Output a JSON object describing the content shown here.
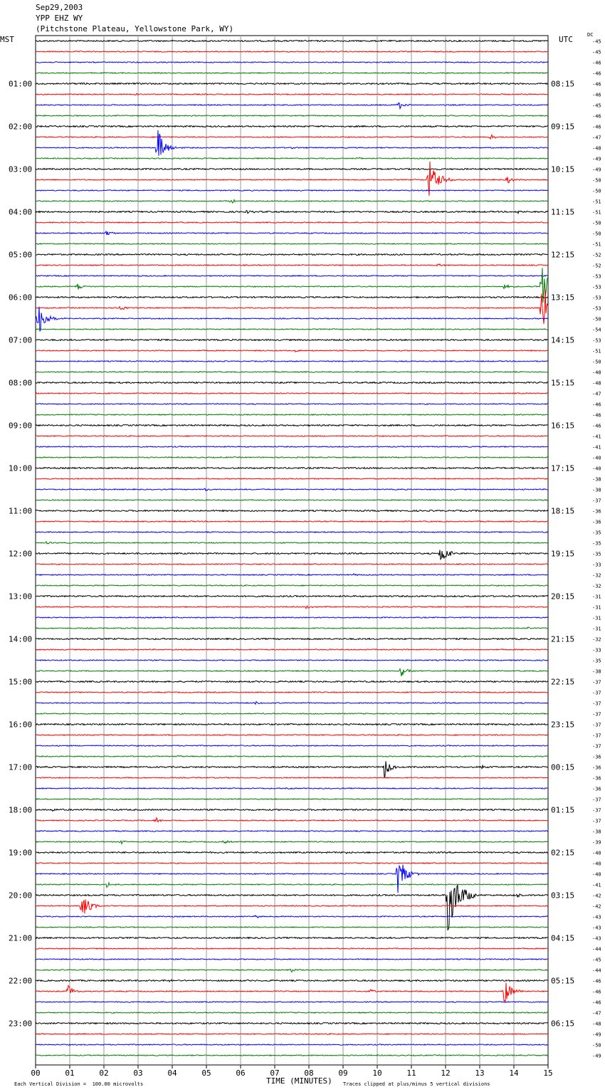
{
  "header": {
    "date": "Sep29,2003",
    "station": "YPP EHZ WY",
    "location": "(Pitchstone Plateau, Yellowstone Park, WY)",
    "left_tz": "MST",
    "right_tz": "UTC",
    "dc_label": "DC"
  },
  "footer": {
    "vertical_division": "Each Vertical Division =  100.00 microvolts",
    "clip_note": "Traces clipped at plus/minus 5 vertical divisions"
  },
  "chart_data": {
    "type": "line",
    "title": "",
    "xlabel": "TIME (MINUTES)",
    "ylabel": "",
    "xlim": [
      0,
      15
    ],
    "x_ticks": [
      "00",
      "01",
      "02",
      "03",
      "04",
      "05",
      "06",
      "07",
      "08",
      "09",
      "10",
      "11",
      "12",
      "13",
      "14",
      "15"
    ],
    "grid": true,
    "trace_colors": [
      "#000000",
      "#ff0000",
      "#0000ff",
      "#008000"
    ],
    "trace_count": 96,
    "left_hour_labels": [
      "01:00",
      "02:00",
      "03:00",
      "04:00",
      "05:00",
      "06:00",
      "07:00",
      "08:00",
      "09:00",
      "10:00",
      "11:00",
      "12:00",
      "13:00",
      "14:00",
      "15:00",
      "16:00",
      "17:00",
      "18:00",
      "19:00",
      "20:00",
      "21:00",
      "22:00",
      "23:00"
    ],
    "right_hour_labels": [
      "08:15",
      "09:15",
      "10:15",
      "11:15",
      "12:15",
      "13:15",
      "14:15",
      "15:15",
      "16:15",
      "17:15",
      "18:15",
      "19:15",
      "20:15",
      "21:15",
      "22:15",
      "23:15",
      "00:15",
      "01:15",
      "02:15",
      "03:15",
      "04:15",
      "05:15",
      "06:15"
    ],
    "dc_offsets": [
      -45,
      -45,
      -46,
      -46,
      -46,
      -46,
      -45,
      -46,
      -46,
      -47,
      -48,
      -49,
      -49,
      -50,
      -50,
      -51,
      -51,
      -50,
      -50,
      -51,
      -52,
      -52,
      -53,
      -53,
      -53,
      -53,
      -50,
      -54,
      -53,
      -51,
      -50,
      -48,
      -48,
      -47,
      -46,
      -46,
      -46,
      -41,
      -41,
      -40,
      -40,
      -38,
      -38,
      -37,
      -36,
      -36,
      -35,
      -35,
      -35,
      -33,
      -32,
      -32,
      -31,
      -31,
      -31,
      -31,
      -32,
      -33,
      -35,
      -38,
      -37,
      -37,
      -37,
      -37,
      -37,
      -37,
      -37,
      -36,
      -36,
      -36,
      -36,
      -37,
      -37,
      -37,
      -38,
      -39,
      -40,
      -40,
      -40,
      -41,
      -42,
      -42,
      -43,
      -43,
      -43,
      -44,
      -45,
      -44,
      -46,
      -46,
      -46,
      -47,
      -48,
      -49,
      -50,
      -49
    ],
    "events": [
      {
        "trace": 4,
        "minute": 1.3,
        "amplitude": 3
      },
      {
        "trace": 5,
        "minute": 2.9,
        "amplitude": 3
      },
      {
        "trace": 6,
        "minute": 10.6,
        "amplitude": 9
      },
      {
        "trace": 9,
        "minute": 13.3,
        "amplitude": 5
      },
      {
        "trace": 10,
        "minute": 3.55,
        "amplitude": 30
      },
      {
        "trace": 10,
        "minute": 7.4,
        "amplitude": 3
      },
      {
        "trace": 11,
        "minute": 9.4,
        "amplitude": 3
      },
      {
        "trace": 13,
        "minute": 11.5,
        "amplitude": 34
      },
      {
        "trace": 13,
        "minute": 13.8,
        "amplitude": 6
      },
      {
        "trace": 15,
        "minute": 5.7,
        "amplitude": 4
      },
      {
        "trace": 16,
        "minute": 6.2,
        "amplitude": 3
      },
      {
        "trace": 16,
        "minute": 14.1,
        "amplitude": 3
      },
      {
        "trace": 18,
        "minute": 2.05,
        "amplitude": 5
      },
      {
        "trace": 21,
        "minute": 11.75,
        "amplitude": 3
      },
      {
        "trace": 23,
        "minute": 1.2,
        "amplitude": 7
      },
      {
        "trace": 23,
        "minute": 13.7,
        "amplitude": 5
      },
      {
        "trace": 23,
        "minute": 14.8,
        "amplitude": 42
      },
      {
        "trace": 25,
        "minute": 2.45,
        "amplitude": 5
      },
      {
        "trace": 25,
        "minute": 14.8,
        "amplitude": 45
      },
      {
        "trace": 26,
        "minute": 0.05,
        "amplitude": 30
      },
      {
        "trace": 29,
        "minute": 7.6,
        "amplitude": 2
      },
      {
        "trace": 40,
        "minute": 1.8,
        "amplitude": 2
      },
      {
        "trace": 42,
        "minute": 4.95,
        "amplitude": 3
      },
      {
        "trace": 47,
        "minute": 0.3,
        "amplitude": 3
      },
      {
        "trace": 50,
        "minute": 9.3,
        "amplitude": 2
      },
      {
        "trace": 48,
        "minute": 11.85,
        "amplitude": 18
      },
      {
        "trace": 53,
        "minute": 7.9,
        "amplitude": 3
      },
      {
        "trace": 55,
        "minute": 14.4,
        "amplitude": 2
      },
      {
        "trace": 59,
        "minute": 10.7,
        "amplitude": 10
      },
      {
        "trace": 62,
        "minute": 6.4,
        "amplitude": 3
      },
      {
        "trace": 67,
        "minute": 4.1,
        "amplitude": 2
      },
      {
        "trace": 68,
        "minute": 13.05,
        "amplitude": 3
      },
      {
        "trace": 68,
        "minute": 10.2,
        "amplitude": 16
      },
      {
        "trace": 70,
        "minute": 7.3,
        "amplitude": 3
      },
      {
        "trace": 72,
        "minute": 0.5,
        "amplitude": 2
      },
      {
        "trace": 73,
        "minute": 3.5,
        "amplitude": 6
      },
      {
        "trace": 75,
        "minute": 2.5,
        "amplitude": 3
      },
      {
        "trace": 75,
        "minute": 5.5,
        "amplitude": 3
      },
      {
        "trace": 76,
        "minute": 9.0,
        "amplitude": 2
      },
      {
        "trace": 78,
        "minute": 10.6,
        "amplitude": 30
      },
      {
        "trace": 79,
        "minute": 2.05,
        "amplitude": 5
      },
      {
        "trace": 80,
        "minute": 12.05,
        "amplitude": 55
      },
      {
        "trace": 80,
        "minute": 14.1,
        "amplitude": 3
      },
      {
        "trace": 81,
        "minute": 1.35,
        "amplitude": 22
      },
      {
        "trace": 82,
        "minute": 6.4,
        "amplitude": 3
      },
      {
        "trace": 87,
        "minute": 7.5,
        "amplitude": 4
      },
      {
        "trace": 88,
        "minute": 3.9,
        "amplitude": 2
      },
      {
        "trace": 89,
        "minute": 0.95,
        "amplitude": 10
      },
      {
        "trace": 89,
        "minute": 9.8,
        "amplitude": 3
      },
      {
        "trace": 89,
        "minute": 13.7,
        "amplitude": 22
      }
    ]
  }
}
